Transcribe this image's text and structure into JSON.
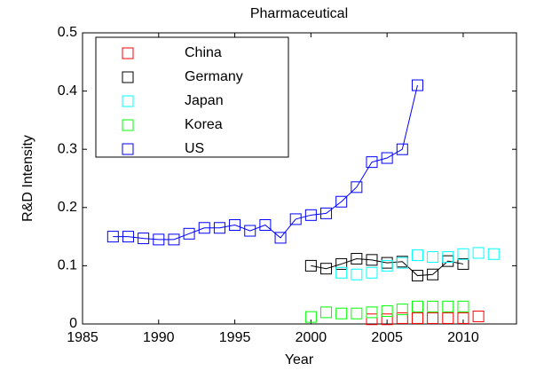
{
  "chart_data": {
    "type": "line",
    "title": "Pharmaceutical",
    "x_label": "Year",
    "y_label": "R&D Intensity",
    "xlim": [
      1985,
      2013.5
    ],
    "ylim": [
      0,
      0.5
    ],
    "xticks": [
      1985,
      1990,
      1995,
      2000,
      2005,
      2010
    ],
    "yticks": [
      0,
      0.1,
      0.2,
      0.3,
      0.4,
      0.5
    ],
    "legend": "upper left",
    "series": [
      {
        "name": "China",
        "color": "#ff0000",
        "lines": false,
        "x": [
          2004,
          2005,
          2006,
          2007,
          2008,
          2009,
          2010,
          2011
        ],
        "values": [
          0.008,
          0.008,
          0.01,
          0.01,
          0.01,
          0.01,
          0.01,
          0.013
        ]
      },
      {
        "name": "Germany",
        "color": "#000000",
        "lines": true,
        "x": [
          2000,
          2001,
          2002,
          2003,
          2004,
          2005,
          2006,
          2007,
          2008,
          2009,
          2010
        ],
        "values": [
          0.1,
          0.095,
          0.103,
          0.112,
          0.11,
          0.105,
          0.107,
          0.083,
          0.085,
          0.108,
          0.103
        ]
      },
      {
        "name": "Japan",
        "color": "#00ffff",
        "lines": false,
        "x": [
          2002,
          2003,
          2004,
          2005,
          2006,
          2007,
          2008,
          2009,
          2010,
          2011,
          2012
        ],
        "values": [
          0.088,
          0.085,
          0.088,
          0.1,
          0.105,
          0.118,
          0.115,
          0.115,
          0.12,
          0.122,
          0.12
        ]
      },
      {
        "name": "Korea",
        "color": "#00ff00",
        "lines": false,
        "x": [
          2000,
          2001,
          2002,
          2003,
          2004,
          2005,
          2006,
          2007,
          2008,
          2009,
          2010
        ],
        "values": [
          0.012,
          0.02,
          0.018,
          0.018,
          0.02,
          0.022,
          0.025,
          0.03,
          0.03,
          0.03,
          0.03
        ]
      },
      {
        "name": "US",
        "color": "#0000ff",
        "lines": true,
        "x": [
          1987,
          1988,
          1989,
          1990,
          1991,
          1992,
          1993,
          1994,
          1995,
          1996,
          1997,
          1998,
          1999,
          2000,
          2001,
          2002,
          2003,
          2004,
          2005,
          2006,
          2007
        ],
        "values": [
          0.15,
          0.15,
          0.147,
          0.145,
          0.145,
          0.155,
          0.165,
          0.165,
          0.17,
          0.16,
          0.17,
          0.148,
          0.18,
          0.187,
          0.19,
          0.21,
          0.235,
          0.278,
          0.285,
          0.3,
          0.41
        ]
      }
    ]
  }
}
